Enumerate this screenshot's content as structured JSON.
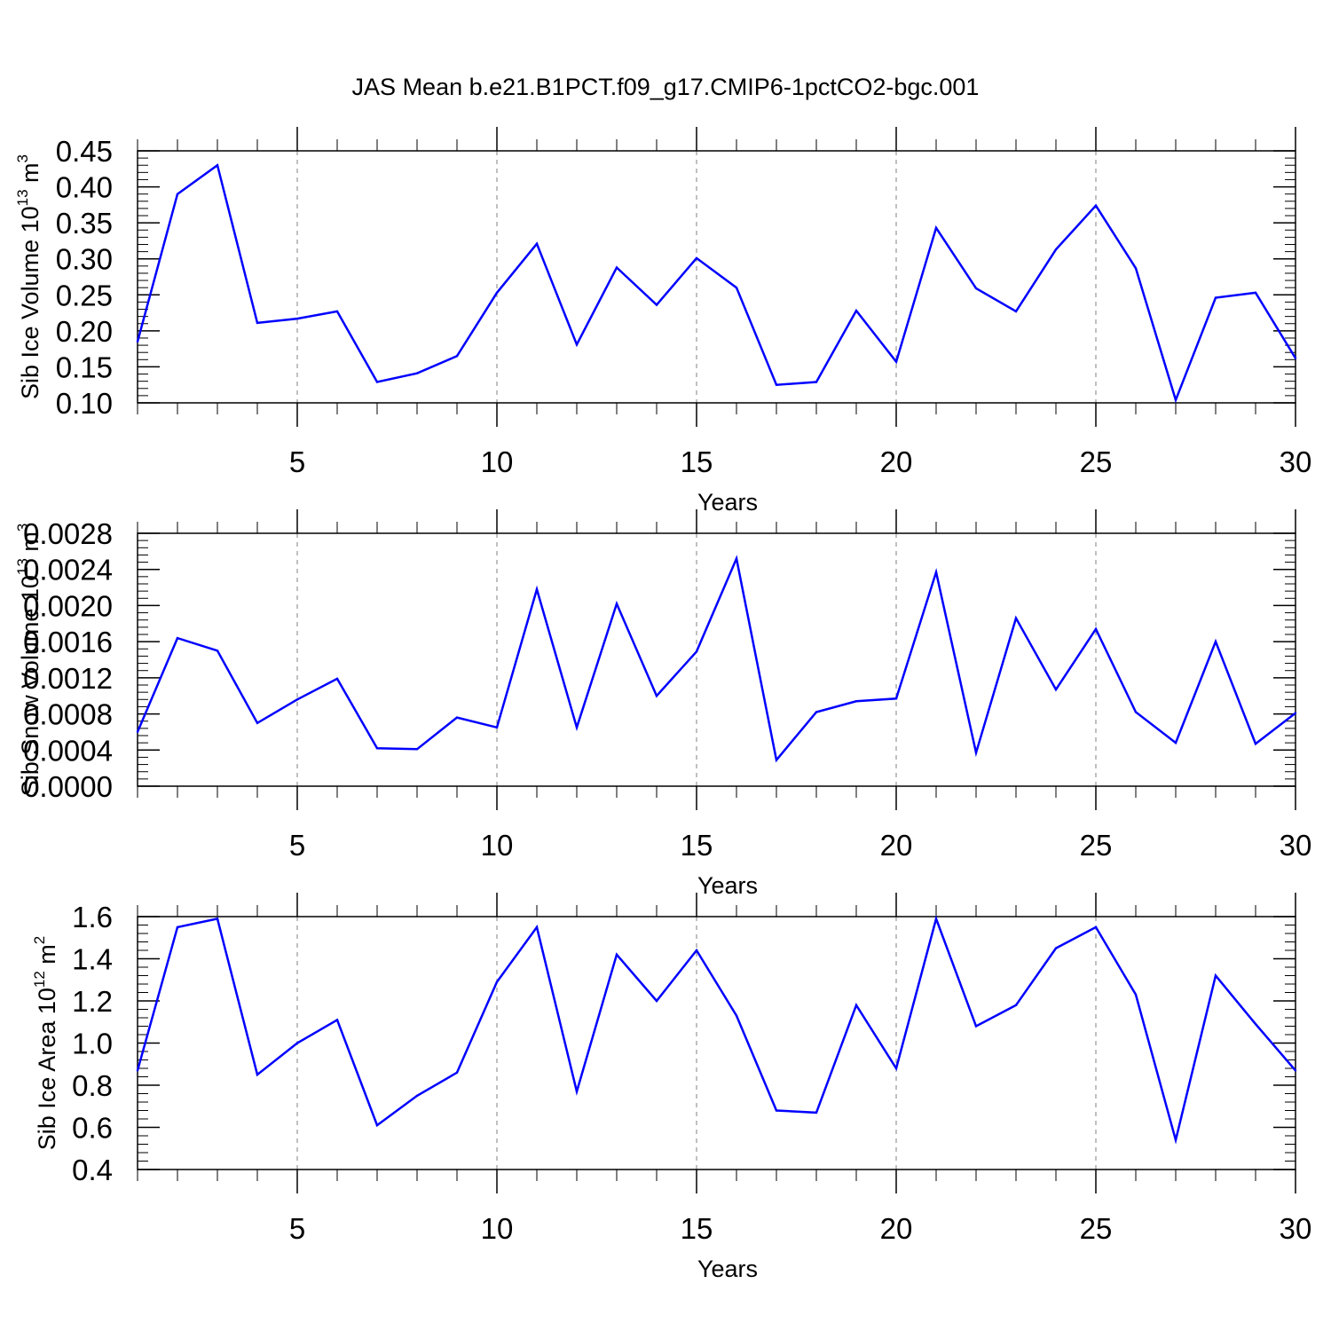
{
  "title": "JAS Mean b.e21.B1PCT.f09_g17.CMIP6-1pctCO2-bgc.001",
  "colors": {
    "line": "#0000ff",
    "axis": "#000000",
    "grid": "#808080"
  },
  "chart_data": [
    {
      "type": "line",
      "ylabel": {
        "base": "Sib Ice Volume 10",
        "exp": "13",
        "unit": " m",
        "unit_exp": "3"
      },
      "xlabel": "Years",
      "xlim": [
        1,
        30
      ],
      "ylim": [
        0.1,
        0.45
      ],
      "yticks": [
        "0.10",
        "0.15",
        "0.20",
        "0.25",
        "0.30",
        "0.35",
        "0.40",
        "0.45"
      ],
      "xticks": [
        "5",
        "10",
        "15",
        "20",
        "25",
        "30"
      ],
      "x": [
        1,
        2,
        3,
        4,
        5,
        6,
        7,
        8,
        9,
        10,
        11,
        12,
        13,
        14,
        15,
        16,
        17,
        18,
        19,
        20,
        21,
        22,
        23,
        24,
        25,
        26,
        27,
        28,
        29,
        30
      ],
      "values": [
        0.185,
        0.39,
        0.43,
        0.211,
        0.217,
        0.227,
        0.129,
        0.141,
        0.165,
        0.253,
        0.321,
        0.181,
        0.288,
        0.236,
        0.301,
        0.26,
        0.125,
        0.129,
        0.228,
        0.157,
        0.343,
        0.259,
        0.227,
        0.313,
        0.374,
        0.287,
        0.104,
        0.246,
        0.253,
        0.162
      ]
    },
    {
      "type": "line",
      "ylabel": {
        "base": "Sib Snow Volume 10",
        "exp": "13",
        "unit": " m",
        "unit_exp": "3"
      },
      "xlabel": "Years",
      "xlim": [
        1,
        30
      ],
      "ylim": [
        0.0,
        0.0028
      ],
      "yticks": [
        "0.0000",
        "0.0004",
        "0.0008",
        "0.0012",
        "0.0016",
        "0.0020",
        "0.0024",
        "0.0028"
      ],
      "xticks": [
        "5",
        "10",
        "15",
        "20",
        "25",
        "30"
      ],
      "x": [
        1,
        2,
        3,
        4,
        5,
        6,
        7,
        8,
        9,
        10,
        11,
        12,
        13,
        14,
        15,
        16,
        17,
        18,
        19,
        20,
        21,
        22,
        23,
        24,
        25,
        26,
        27,
        28,
        29,
        30
      ],
      "values": [
        0.0006,
        0.00164,
        0.0015,
        0.0007,
        0.00096,
        0.00119,
        0.00042,
        0.00041,
        0.00076,
        0.00065,
        0.00218,
        0.00065,
        0.00202,
        0.001,
        0.00149,
        0.00252,
        0.00029,
        0.00082,
        0.00094,
        0.00097,
        0.00237,
        0.00037,
        0.00186,
        0.00107,
        0.00174,
        0.00082,
        0.00048,
        0.0016,
        0.00047,
        0.00081
      ]
    },
    {
      "type": "line",
      "ylabel": {
        "base": "Sib Ice Area 10",
        "exp": "12",
        "unit": " m",
        "unit_exp": "2"
      },
      "xlabel": "Years",
      "xlim": [
        1,
        30
      ],
      "ylim": [
        0.4,
        1.6
      ],
      "yticks": [
        "0.4",
        "0.6",
        "0.8",
        "1.0",
        "1.2",
        "1.4",
        "1.6"
      ],
      "xticks": [
        "5",
        "10",
        "15",
        "20",
        "25",
        "30"
      ],
      "x": [
        1,
        2,
        3,
        4,
        5,
        6,
        7,
        8,
        9,
        10,
        11,
        12,
        13,
        14,
        15,
        16,
        17,
        18,
        19,
        20,
        21,
        22,
        23,
        24,
        25,
        26,
        27,
        28,
        29,
        30
      ],
      "values": [
        0.87,
        1.55,
        1.59,
        0.85,
        1.0,
        1.11,
        0.61,
        0.75,
        0.86,
        1.29,
        1.55,
        0.77,
        1.42,
        1.2,
        1.44,
        1.13,
        0.68,
        0.67,
        1.18,
        0.88,
        1.59,
        1.08,
        1.18,
        1.45,
        1.55,
        1.23,
        0.54,
        1.32,
        1.09,
        0.87
      ]
    }
  ]
}
